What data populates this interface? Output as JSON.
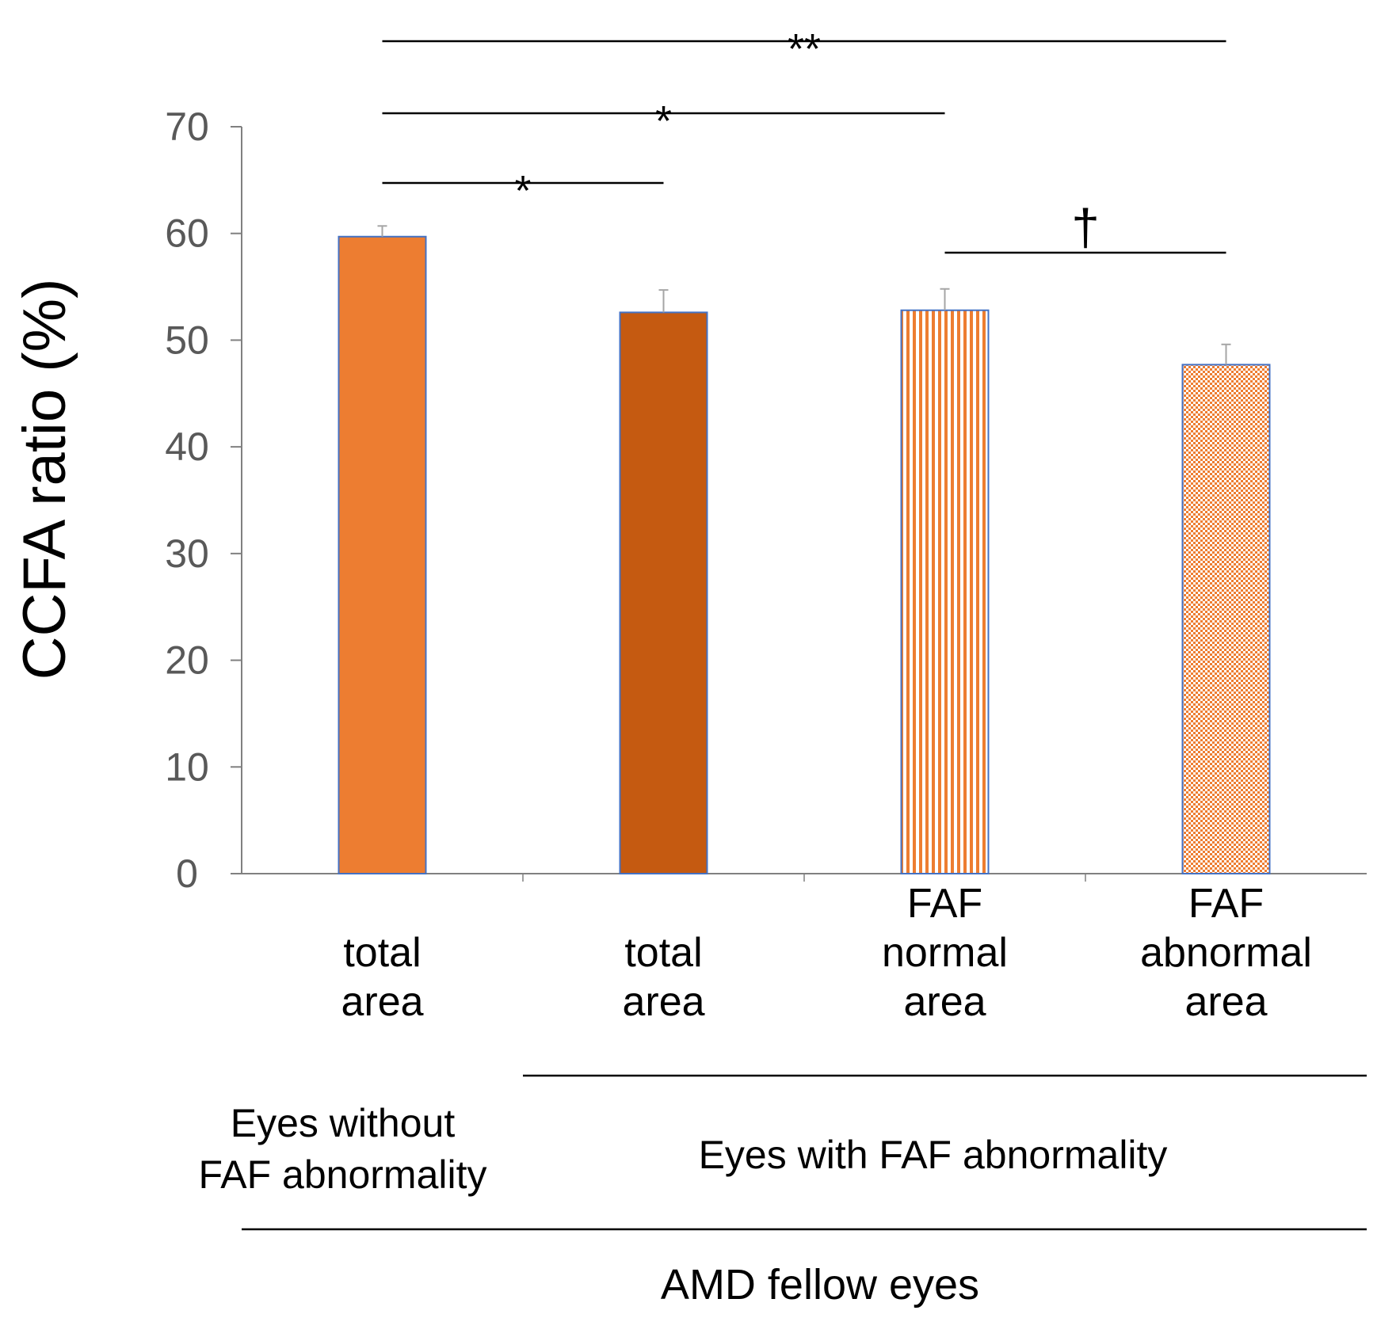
{
  "chart_data": {
    "type": "bar",
    "ylabel": "CCFA ratio (%)",
    "xlabel": "",
    "ylim": [
      0,
      70
    ],
    "y_ticks": [
      0,
      10,
      20,
      30,
      40,
      50,
      60,
      70
    ],
    "grid": false,
    "categories": [
      {
        "label": [
          "total",
          "area"
        ],
        "value": 59.7,
        "error": 1.0,
        "fill": "solid",
        "color": "#ED7D31"
      },
      {
        "label": [
          "total",
          "area"
        ],
        "value": 52.6,
        "error": 2.1,
        "fill": "solid",
        "color": "#C55A11"
      },
      {
        "label": [
          "FAF",
          "normal",
          "area"
        ],
        "value": 52.8,
        "error": 2.0,
        "fill": "vertical-stripes",
        "color": "#ED7D31"
      },
      {
        "label": [
          "FAF",
          "abnormal",
          "area"
        ],
        "value": 47.7,
        "error": 1.9,
        "fill": "checker",
        "color": "#ED7D31"
      }
    ],
    "significance": [
      {
        "from": 0,
        "to": 3,
        "label": "**"
      },
      {
        "from": 0,
        "to": 2,
        "label": "*"
      },
      {
        "from": 0,
        "to": 1,
        "label": "*"
      },
      {
        "from": 2,
        "to": 3,
        "label": "†"
      }
    ],
    "groups": [
      {
        "label": [
          "Eyes without",
          "FAF abnormality"
        ],
        "from": 0,
        "to": 0
      },
      {
        "label": [
          "Eyes with FAF abnormality"
        ],
        "from": 1,
        "to": 3
      }
    ],
    "supergroup": {
      "label": "AMD fellow eyes",
      "from": 0,
      "to": 3
    },
    "colors": {
      "axis": "#808080",
      "tick_label": "#595959",
      "text": "#000000",
      "bar_border": "#4472C4",
      "error_bar": "#A6A6A6"
    }
  }
}
